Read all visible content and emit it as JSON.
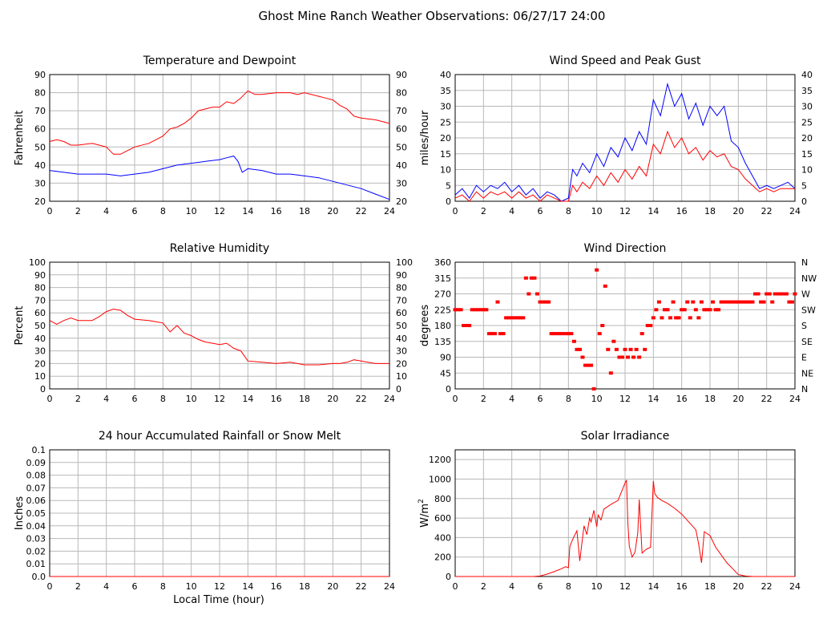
{
  "page": {
    "title": "Ghost Mine Ranch Weather Observations: 06/27/17 24:00",
    "xlabel": "Local Time (hour)"
  },
  "colors": {
    "red": "#ff0000",
    "blue": "#0000ff"
  },
  "chart_data": [
    {
      "id": "temp",
      "type": "line",
      "title": "Temperature and Dewpoint",
      "ylabel": "Fahrenheit",
      "xlim": [
        0,
        24
      ],
      "ylim": [
        20,
        90
      ],
      "yticks": [
        20,
        30,
        40,
        50,
        60,
        70,
        80,
        90
      ],
      "right_ticks": [
        "20",
        "30",
        "40",
        "50",
        "60",
        "70",
        "80",
        "90"
      ],
      "xticks": [
        0,
        2,
        4,
        6,
        8,
        10,
        12,
        14,
        16,
        18,
        20,
        22,
        24
      ],
      "grid": true,
      "series": [
        {
          "color": "red",
          "x": [
            0,
            0.5,
            1,
            1.5,
            2,
            3,
            3.5,
            4,
            4.5,
            5,
            5.5,
            6,
            7,
            7.5,
            8,
            8.5,
            9,
            9.5,
            10,
            10.5,
            11,
            11.5,
            12,
            12.5,
            13,
            13.5,
            14,
            14.5,
            15,
            16,
            17,
            17.5,
            18,
            19,
            19.5,
            20,
            20.5,
            21,
            21.5,
            22,
            23,
            24
          ],
          "y": [
            53,
            54,
            53,
            51,
            51,
            52,
            51,
            50,
            46,
            46,
            48,
            50,
            52,
            54,
            56,
            60,
            61,
            63,
            66,
            70,
            71,
            72,
            72,
            75,
            74,
            77,
            81,
            79,
            79,
            80,
            80,
            79,
            80,
            78,
            77,
            76,
            73,
            71,
            67,
            66,
            65,
            63
          ]
        },
        {
          "color": "blue",
          "x": [
            0,
            1,
            2,
            3,
            4,
            5,
            6,
            7,
            8,
            9,
            10,
            11,
            12,
            12.5,
            13,
            13.3,
            13.6,
            14,
            15,
            16,
            17,
            18,
            19,
            20,
            21,
            22,
            23,
            24
          ],
          "y": [
            37,
            36,
            35,
            35,
            35,
            34,
            35,
            36,
            38,
            40,
            41,
            42,
            43,
            44,
            45,
            42,
            36,
            38,
            37,
            35,
            35,
            34,
            33,
            31,
            29,
            27,
            24,
            21
          ]
        }
      ]
    },
    {
      "id": "wind",
      "type": "line",
      "title": "Wind Speed and Peak Gust",
      "ylabel": "miles/hour",
      "xlim": [
        0,
        24
      ],
      "ylim": [
        0,
        40
      ],
      "yticks": [
        0,
        5,
        10,
        15,
        20,
        25,
        30,
        35,
        40
      ],
      "right_ticks": [
        "0",
        "5",
        "10",
        "15",
        "20",
        "25",
        "30",
        "35",
        "40"
      ],
      "xticks": [
        0,
        2,
        4,
        6,
        8,
        10,
        12,
        14,
        16,
        18,
        20,
        22,
        24
      ],
      "grid": true,
      "series": [
        {
          "color": "blue",
          "x": [
            0,
            0.5,
            1,
            1.5,
            2,
            2.5,
            3,
            3.5,
            4,
            4.5,
            5,
            5.5,
            6,
            6.5,
            7,
            7.5,
            8,
            8.3,
            8.6,
            9,
            9.5,
            10,
            10.5,
            11,
            11.5,
            12,
            12.5,
            13,
            13.5,
            14,
            14.5,
            15,
            15.5,
            16,
            16.5,
            17,
            17.5,
            18,
            18.5,
            19,
            19.5,
            20,
            20.5,
            21,
            21.5,
            22,
            22.5,
            23,
            23.5,
            24
          ],
          "y": [
            2,
            4,
            1,
            5,
            3,
            5,
            4,
            6,
            3,
            5,
            2,
            4,
            1,
            3,
            2,
            0,
            1,
            10,
            8,
            12,
            9,
            15,
            11,
            17,
            14,
            20,
            16,
            22,
            18,
            32,
            27,
            37,
            30,
            34,
            26,
            31,
            24,
            30,
            27,
            30,
            19,
            17,
            12,
            8,
            4,
            5,
            4,
            5,
            6,
            4
          ]
        },
        {
          "color": "red",
          "x": [
            0,
            0.5,
            1,
            1.5,
            2,
            2.5,
            3,
            3.5,
            4,
            4.5,
            5,
            5.5,
            6,
            6.5,
            7,
            7.5,
            8,
            8.3,
            8.6,
            9,
            9.5,
            10,
            10.5,
            11,
            11.5,
            12,
            12.5,
            13,
            13.5,
            14,
            14.5,
            15,
            15.5,
            16,
            16.5,
            17,
            17.5,
            18,
            18.5,
            19,
            19.5,
            20,
            20.5,
            21,
            21.5,
            22,
            22.5,
            23,
            23.5,
            24
          ],
          "y": [
            1,
            2,
            0,
            3,
            1,
            3,
            2,
            3,
            1,
            3,
            1,
            2,
            0,
            2,
            1,
            0,
            0,
            5,
            3,
            6,
            4,
            8,
            5,
            9,
            6,
            10,
            7,
            11,
            8,
            18,
            15,
            22,
            17,
            20,
            15,
            17,
            13,
            16,
            14,
            15,
            11,
            10,
            7,
            5,
            3,
            4,
            3,
            4,
            4,
            4
          ]
        }
      ]
    },
    {
      "id": "rh",
      "type": "line",
      "title": "Relative Humidity",
      "ylabel": "Percent",
      "xlim": [
        0,
        24
      ],
      "ylim": [
        0,
        100
      ],
      "yticks": [
        0,
        10,
        20,
        30,
        40,
        50,
        60,
        70,
        80,
        90,
        100
      ],
      "right_ticks": [
        "0",
        "10",
        "20",
        "30",
        "40",
        "50",
        "60",
        "70",
        "80",
        "90",
        "100"
      ],
      "xticks": [
        0,
        2,
        4,
        6,
        8,
        10,
        12,
        14,
        16,
        18,
        20,
        22,
        24
      ],
      "grid": true,
      "series": [
        {
          "color": "red",
          "x": [
            0,
            0.5,
            1,
            1.5,
            2,
            3,
            3.5,
            4,
            4.5,
            5,
            5.5,
            6,
            7,
            7.5,
            8,
            8.5,
            9,
            9.5,
            10,
            10.5,
            11,
            12,
            12.5,
            13,
            13.5,
            14,
            15,
            16,
            17,
            18,
            19,
            20,
            20.5,
            21,
            21.5,
            22,
            23,
            24
          ],
          "y": [
            54,
            51,
            54,
            56,
            54,
            54,
            57,
            61,
            63,
            62,
            58,
            55,
            54,
            53,
            52,
            45,
            50,
            44,
            42,
            39,
            37,
            35,
            36,
            32,
            30,
            22,
            21,
            20,
            21,
            19,
            19,
            20,
            20,
            21,
            23,
            22,
            20,
            20
          ]
        }
      ]
    },
    {
      "id": "wdir",
      "type": "scatter",
      "title": "Wind Direction",
      "ylabel": "degrees",
      "xlim": [
        0,
        24
      ],
      "ylim": [
        0,
        360
      ],
      "yticks": [
        0,
        45,
        90,
        135,
        180,
        225,
        270,
        315,
        360
      ],
      "right_ticks": [
        "N",
        "NE",
        "E",
        "SE",
        "S",
        "SW",
        "W",
        "NW",
        "N"
      ],
      "xticks": [
        0,
        2,
        4,
        6,
        8,
        10,
        12,
        14,
        16,
        18,
        20,
        22,
        24
      ],
      "grid": true,
      "series": [
        {
          "color": "red",
          "x": [
            0,
            0.2,
            0.4,
            0.6,
            0.8,
            1.0,
            1.2,
            1.4,
            1.6,
            1.8,
            2.0,
            2.2,
            2.4,
            2.6,
            2.8,
            3.0,
            3.2,
            3.4,
            3.6,
            3.8,
            4.0,
            4.2,
            4.4,
            4.6,
            4.8,
            5.0,
            5.2,
            5.4,
            5.6,
            5.8,
            6.0,
            6.2,
            6.4,
            6.6,
            6.8,
            7.0,
            7.2,
            7.4,
            7.6,
            7.8,
            8.0,
            8.2,
            8.4,
            8.6,
            8.8,
            9.0,
            9.2,
            9.4,
            9.6,
            9.8,
            10.0,
            10.2,
            10.4,
            10.6,
            10.8,
            11.0,
            11.2,
            11.4,
            11.6,
            11.8,
            12.0,
            12.2,
            12.4,
            12.6,
            12.8,
            13.0,
            13.2,
            13.4,
            13.6,
            13.8,
            14.0,
            14.2,
            14.4,
            14.6,
            14.8,
            15.0,
            15.2,
            15.4,
            15.6,
            15.8,
            16.0,
            16.2,
            16.4,
            16.6,
            16.8,
            17.0,
            17.2,
            17.4,
            17.6,
            17.8,
            18.0,
            18.2,
            18.4,
            18.6,
            18.8,
            19.0,
            19.2,
            19.4,
            19.6,
            19.8,
            20.0,
            20.2,
            20.4,
            20.6,
            20.8,
            21.0,
            21.2,
            21.4,
            21.6,
            21.8,
            22.0,
            22.2,
            22.4,
            22.6,
            22.8,
            23.0,
            23.2,
            23.4,
            23.6,
            23.8,
            24.0
          ],
          "y": [
            225,
            225,
            225,
            180,
            180,
            180,
            225,
            225,
            225,
            225,
            225,
            225,
            157,
            157,
            157,
            247,
            157,
            157,
            202,
            202,
            202,
            202,
            202,
            202,
            202,
            315,
            270,
            315,
            315,
            270,
            247,
            247,
            247,
            247,
            157,
            157,
            157,
            157,
            157,
            157,
            157,
            157,
            135,
            112,
            112,
            90,
            67,
            67,
            67,
            0,
            338,
            157,
            180,
            292,
            112,
            45,
            135,
            112,
            90,
            90,
            112,
            90,
            112,
            90,
            112,
            90,
            157,
            112,
            180,
            180,
            202,
            225,
            247,
            202,
            225,
            225,
            202,
            247,
            202,
            202,
            225,
            225,
            247,
            202,
            247,
            225,
            202,
            247,
            225,
            225,
            225,
            247,
            225,
            225,
            247,
            247,
            247,
            247,
            247,
            247,
            247,
            247,
            247,
            247,
            247,
            247,
            270,
            270,
            247,
            247,
            270,
            270,
            247,
            270,
            270,
            270,
            270,
            270,
            247,
            247,
            270
          ]
        }
      ]
    },
    {
      "id": "rain",
      "type": "line",
      "title": "24 hour Accumulated Rainfall or Snow Melt",
      "ylabel": "Inches",
      "xlim": [
        0,
        24
      ],
      "ylim": [
        0,
        0.1
      ],
      "yticks": [
        0,
        0.01,
        0.02,
        0.03,
        0.04,
        0.05,
        0.06,
        0.07,
        0.08,
        0.09,
        0.1
      ],
      "ytick_labels": [
        "0.0",
        "0.01",
        "0.02",
        "0.03",
        "0.04",
        "0.05",
        "0.06",
        "0.07",
        "0.08",
        "0.09",
        "0.1"
      ],
      "xticks": [
        0,
        2,
        4,
        6,
        8,
        10,
        12,
        14,
        16,
        18,
        20,
        22,
        24
      ],
      "grid": true,
      "series": [
        {
          "color": "red",
          "x": [
            0,
            24
          ],
          "y": [
            0,
            0
          ]
        }
      ]
    },
    {
      "id": "solar",
      "type": "line",
      "title": "Solar Irradiance",
      "ylabel": "W/m",
      "ylabel_sup": "2",
      "xlim": [
        0,
        24
      ],
      "ylim": [
        0,
        1300
      ],
      "yticks": [
        0,
        200,
        400,
        600,
        800,
        1000,
        1200
      ],
      "xticks": [
        0,
        2,
        4,
        6,
        8,
        10,
        12,
        14,
        16,
        18,
        20,
        22,
        24
      ],
      "grid": true,
      "series": [
        {
          "color": "red",
          "x": [
            0,
            5.5,
            6,
            6.5,
            7,
            7.5,
            7.8,
            8,
            8.1,
            8.3,
            8.6,
            8.8,
            8.9,
            9.1,
            9.3,
            9.5,
            9.6,
            9.8,
            10,
            10.1,
            10.3,
            10.5,
            10.7,
            11,
            11.5,
            12,
            12.1,
            12.2,
            12.3,
            12.5,
            12.7,
            12.9,
            13,
            13.2,
            13.5,
            13.8,
            14,
            14.1,
            14.3,
            14.6,
            15,
            15.5,
            16,
            16.5,
            17,
            17.2,
            17.4,
            17.6,
            18,
            18.4,
            18.8,
            19.2,
            19.6,
            20,
            20.5,
            21,
            22,
            24
          ],
          "y": [
            0,
            0,
            5,
            25,
            50,
            80,
            100,
            90,
            310,
            380,
            470,
            160,
            280,
            520,
            430,
            600,
            560,
            680,
            510,
            630,
            580,
            690,
            710,
            740,
            780,
            960,
            990,
            550,
            310,
            200,
            250,
            450,
            790,
            240,
            280,
            300,
            980,
            850,
            810,
            780,
            750,
            700,
            640,
            560,
            480,
            330,
            140,
            460,
            420,
            300,
            220,
            140,
            80,
            20,
            5,
            0,
            0,
            0
          ]
        }
      ]
    }
  ]
}
